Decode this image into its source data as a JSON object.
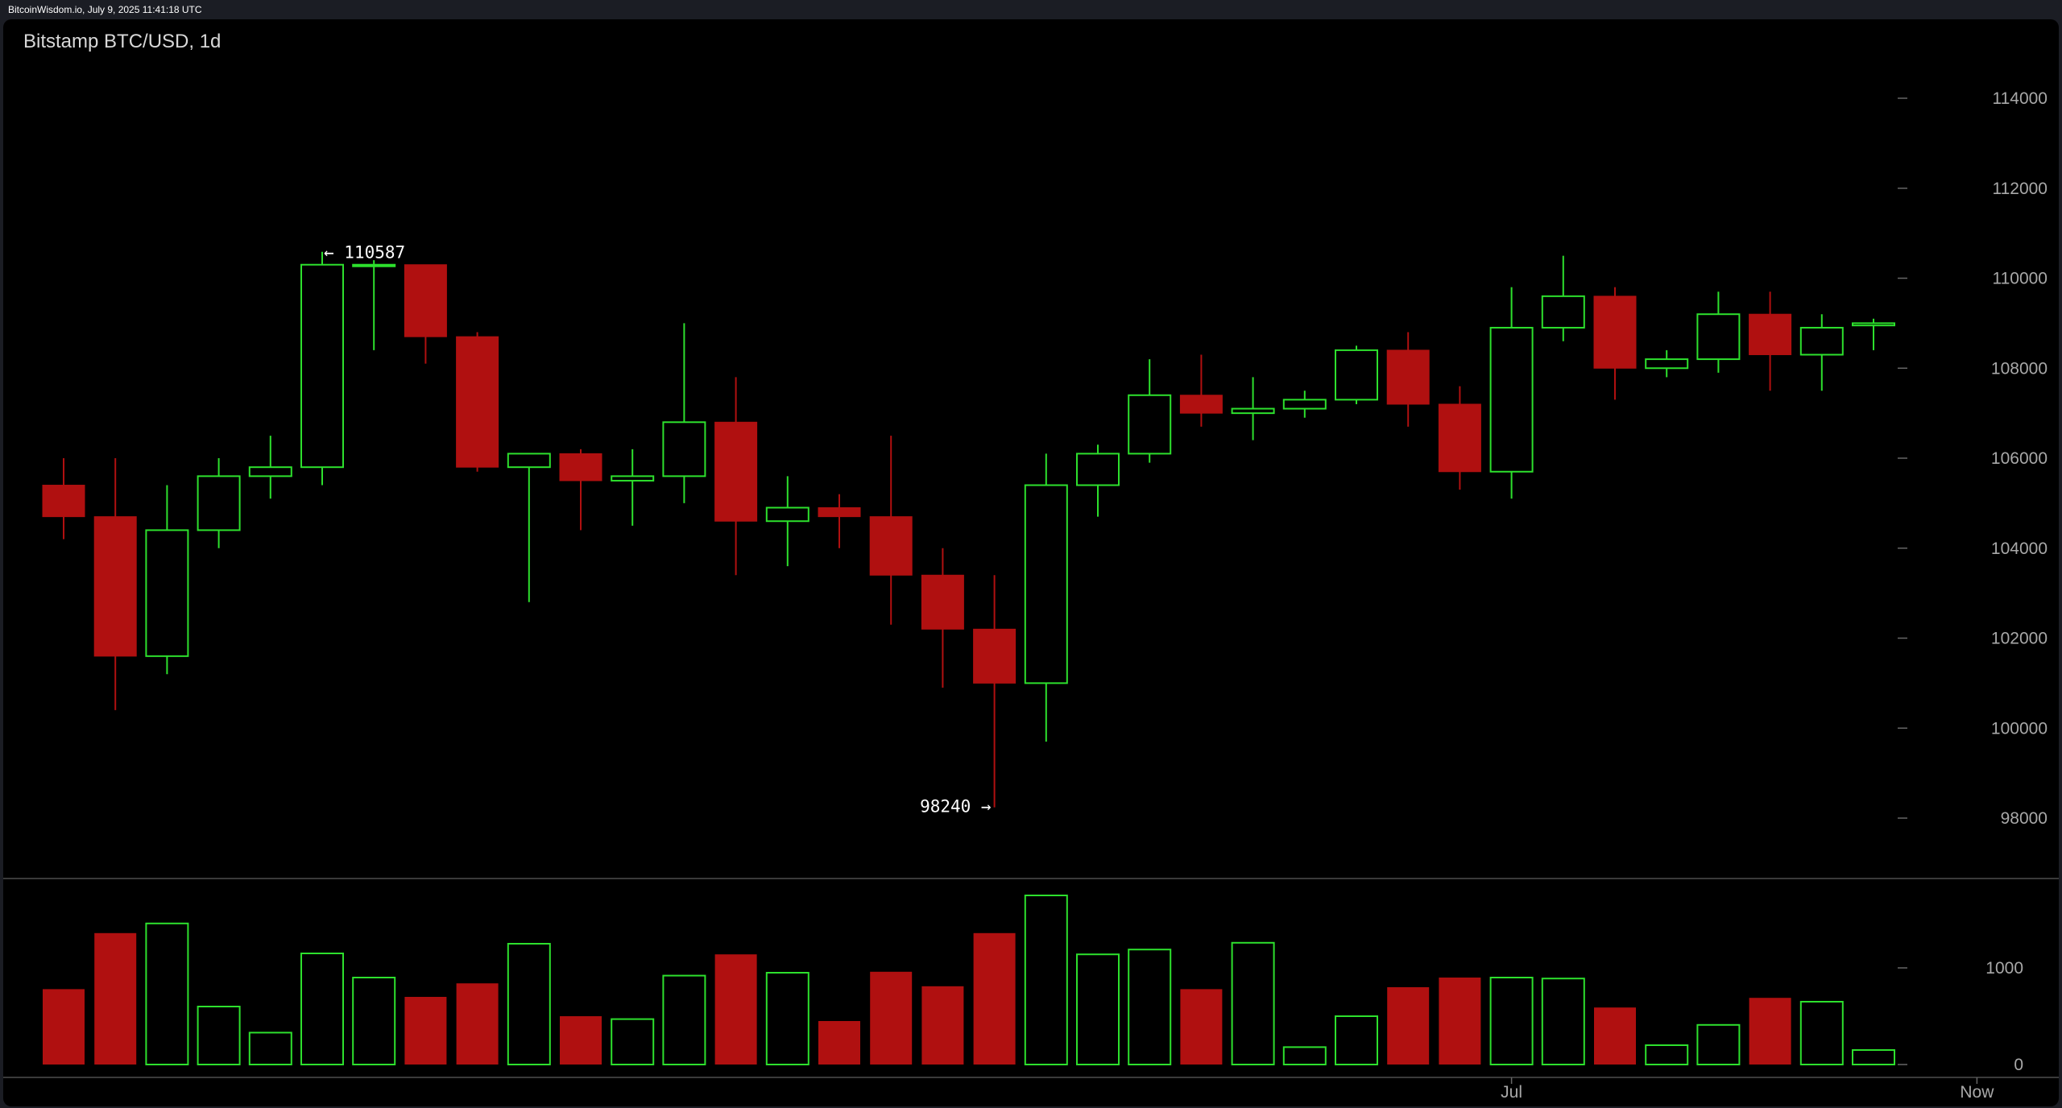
{
  "header": {
    "timestamp": "BitcoinWisdom.io, July 9, 2025 11:41:18 UTC"
  },
  "chart_data": {
    "type": "candlestick",
    "title": "Bitstamp BTC/USD, 1d",
    "price_axis": {
      "ticks": [
        "98000",
        "100000",
        "102000",
        "104000",
        "106000",
        "108000",
        "110000",
        "112000",
        "114000"
      ],
      "range": [
        97000,
        116000
      ]
    },
    "volume_axis": {
      "ticks": [
        "0",
        "1000"
      ]
    },
    "time_labels": [
      {
        "label": "Jul",
        "index": 28
      },
      {
        "label": "Now",
        "index": 37
      }
    ],
    "annotations": {
      "high": "← 110587",
      "low": "98240 →"
    },
    "colors": {
      "up": "#2de02d",
      "down": "#b01010",
      "grid_text": "#a8a8a8",
      "background": "#000000"
    },
    "candles": [
      {
        "o": 105400,
        "h": 106000,
        "l": 104200,
        "c": 104700,
        "v": 780
      },
      {
        "o": 104700,
        "h": 106000,
        "l": 100400,
        "c": 101600,
        "v": 1360
      },
      {
        "o": 101600,
        "h": 105400,
        "l": 101200,
        "c": 104400,
        "v": 1460
      },
      {
        "o": 104400,
        "h": 106000,
        "l": 104000,
        "c": 105600,
        "v": 600
      },
      {
        "o": 105600,
        "h": 106500,
        "l": 105100,
        "c": 105800,
        "v": 330
      },
      {
        "o": 105800,
        "h": 110587,
        "l": 105400,
        "c": 110300,
        "v": 1150
      },
      {
        "o": 110300,
        "h": 110400,
        "l": 108400,
        "c": 110300,
        "v": 900
      },
      {
        "o": 110300,
        "h": 110300,
        "l": 108100,
        "c": 108700,
        "v": 700
      },
      {
        "o": 108700,
        "h": 108800,
        "l": 105700,
        "c": 105800,
        "v": 840
      },
      {
        "o": 105800,
        "h": 106100,
        "l": 102800,
        "c": 106100,
        "v": 1250
      },
      {
        "o": 106100,
        "h": 106200,
        "l": 104400,
        "c": 105500,
        "v": 500
      },
      {
        "o": 105500,
        "h": 106200,
        "l": 104500,
        "c": 105600,
        "v": 470
      },
      {
        "o": 105600,
        "h": 109000,
        "l": 105000,
        "c": 106800,
        "v": 920
      },
      {
        "o": 106800,
        "h": 107800,
        "l": 103400,
        "c": 104600,
        "v": 1140
      },
      {
        "o": 104600,
        "h": 105600,
        "l": 103600,
        "c": 104900,
        "v": 950
      },
      {
        "o": 104900,
        "h": 105200,
        "l": 104000,
        "c": 104700,
        "v": 450
      },
      {
        "o": 104700,
        "h": 106500,
        "l": 102300,
        "c": 103400,
        "v": 960
      },
      {
        "o": 103400,
        "h": 104000,
        "l": 100900,
        "c": 102200,
        "v": 810
      },
      {
        "o": 102200,
        "h": 103400,
        "l": 98240,
        "c": 101000,
        "v": 1360
      },
      {
        "o": 101000,
        "h": 106100,
        "l": 99700,
        "c": 105400,
        "v": 1750
      },
      {
        "o": 105400,
        "h": 106300,
        "l": 104700,
        "c": 106100,
        "v": 1140
      },
      {
        "o": 106100,
        "h": 108200,
        "l": 105900,
        "c": 107400,
        "v": 1190
      },
      {
        "o": 107400,
        "h": 108300,
        "l": 106700,
        "c": 107000,
        "v": 780
      },
      {
        "o": 107000,
        "h": 107800,
        "l": 106400,
        "c": 107100,
        "v": 1260
      },
      {
        "o": 107100,
        "h": 107500,
        "l": 106900,
        "c": 107300,
        "v": 180
      },
      {
        "o": 107300,
        "h": 108500,
        "l": 107200,
        "c": 108400,
        "v": 500
      },
      {
        "o": 108400,
        "h": 108800,
        "l": 106700,
        "c": 107200,
        "v": 800
      },
      {
        "o": 107200,
        "h": 107600,
        "l": 105300,
        "c": 105700,
        "v": 900
      },
      {
        "o": 105700,
        "h": 109800,
        "l": 105100,
        "c": 108900,
        "v": 900
      },
      {
        "o": 108900,
        "h": 110500,
        "l": 108600,
        "c": 109600,
        "v": 890
      },
      {
        "o": 109600,
        "h": 109800,
        "l": 107300,
        "c": 108000,
        "v": 590
      },
      {
        "o": 108000,
        "h": 108400,
        "l": 107800,
        "c": 108200,
        "v": 200
      },
      {
        "o": 108200,
        "h": 109700,
        "l": 107900,
        "c": 109200,
        "v": 410
      },
      {
        "o": 109200,
        "h": 109700,
        "l": 107500,
        "c": 108300,
        "v": 690
      },
      {
        "o": 108300,
        "h": 109200,
        "l": 107500,
        "c": 108900,
        "v": 650
      },
      {
        "o": 108950,
        "h": 109100,
        "l": 108400,
        "c": 109000,
        "v": 150
      }
    ]
  }
}
